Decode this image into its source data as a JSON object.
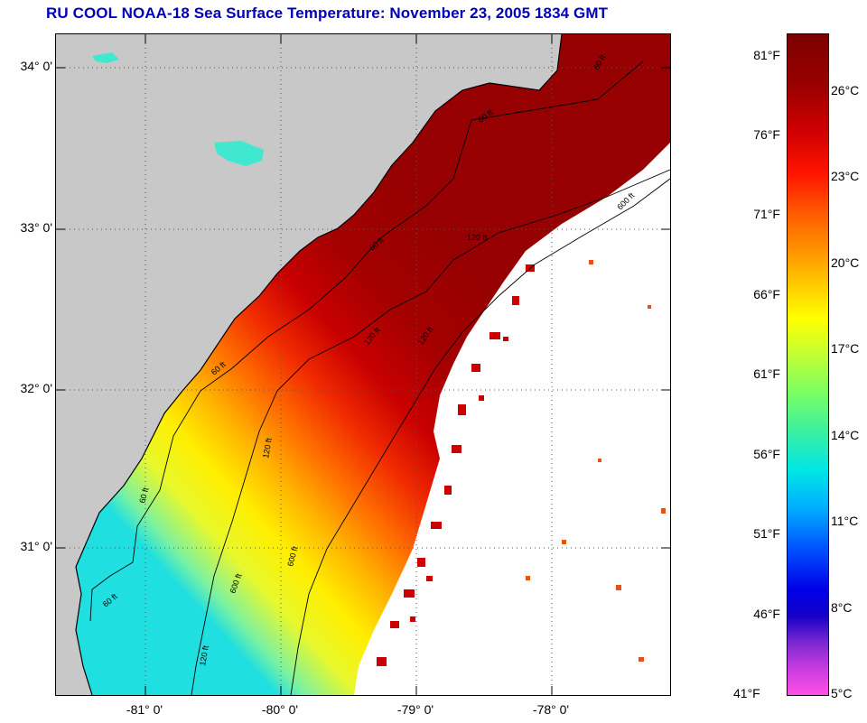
{
  "title": "RU COOL  NOAA-18  Sea Surface Temperature:  November 23, 2005 1834 GMT",
  "map": {
    "lat_labels": [
      "34° 0'",
      "33° 0'",
      "32° 0'",
      "31° 0'"
    ],
    "lon_labels": [
      "-81° 0'",
      "-80° 0'",
      "-79° 0'",
      "-78° 0'"
    ],
    "isobath_labels": [
      "60 ft",
      "60 ft",
      "60 ft",
      "60 ft",
      "60 ft",
      "60 ft",
      "120 ft",
      "120 ft",
      "120 ft",
      "120 ft",
      "120 ft",
      "600 ft",
      "600 ft",
      "600 ft"
    ],
    "land_color": "#c8c8c8",
    "cloud_color": "#ffffff"
  },
  "colorbar": {
    "f_labels": [
      "81°F",
      "76°F",
      "71°F",
      "66°F",
      "61°F",
      "56°F",
      "51°F",
      "46°F",
      "41°F"
    ],
    "c_labels": [
      "26°C",
      "23°C",
      "20°C",
      "17°C",
      "14°C",
      "11°C",
      "8°C",
      "5°C"
    ]
  }
}
